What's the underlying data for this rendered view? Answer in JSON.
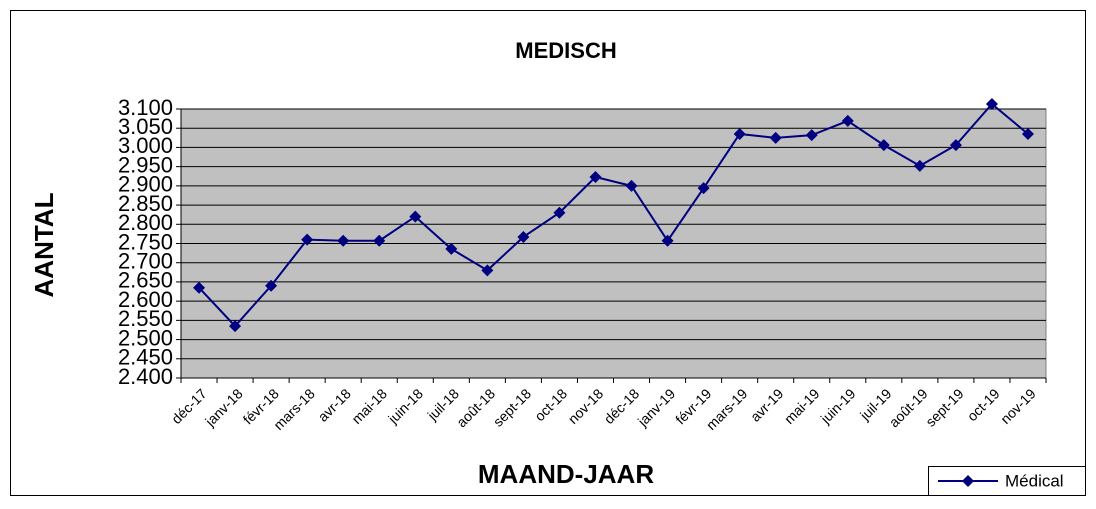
{
  "chart_data": {
    "type": "line",
    "title": "MEDISCH",
    "x_label": "MAAND-JAAR",
    "y_label": "AANTAL",
    "categories": [
      "déc-17",
      "janv-18",
      "févr-18",
      "mars-18",
      "avr-18",
      "mai-18",
      "juin-18",
      "juil-18",
      "août-18",
      "sept-18",
      "oct-18",
      "nov-18",
      "déc-18",
      "janv-19",
      "févr-19",
      "mars-19",
      "avr-19",
      "mai-19",
      "juin-19",
      "juil-19",
      "août-19",
      "sept-19",
      "oct-19",
      "nov-19"
    ],
    "series": [
      {
        "name": "Médical",
        "color": "#000080",
        "values": [
          2635,
          2535,
          2640,
          2760,
          2757,
          2757,
          2820,
          2736,
          2680,
          2767,
          2830,
          2923,
          2900,
          2757,
          2894,
          3035,
          3025,
          3032,
          3069,
          3006,
          2952,
          3006,
          3113,
          3035
        ]
      }
    ],
    "ylim": [
      2400,
      3100
    ],
    "yticks": [
      {
        "value": 2400,
        "label": "2.400"
      },
      {
        "value": 2450,
        "label": "2.450"
      },
      {
        "value": 2500,
        "label": "2.500"
      },
      {
        "value": 2550,
        "label": "2.550"
      },
      {
        "value": 2600,
        "label": "2.600"
      },
      {
        "value": 2650,
        "label": "2.650"
      },
      {
        "value": 2700,
        "label": "2.700"
      },
      {
        "value": 2750,
        "label": "2.750"
      },
      {
        "value": 2800,
        "label": "2.800"
      },
      {
        "value": 2850,
        "label": "2.850"
      },
      {
        "value": 2900,
        "label": "2.900"
      },
      {
        "value": 2950,
        "label": "2.950"
      },
      {
        "value": 3000,
        "label": "3.000"
      },
      {
        "value": 3050,
        "label": "3.050"
      },
      {
        "value": 3100,
        "label": "3.100"
      }
    ],
    "grid": true,
    "legend": "bottom-right",
    "plot_background": "#c0c0c0"
  }
}
